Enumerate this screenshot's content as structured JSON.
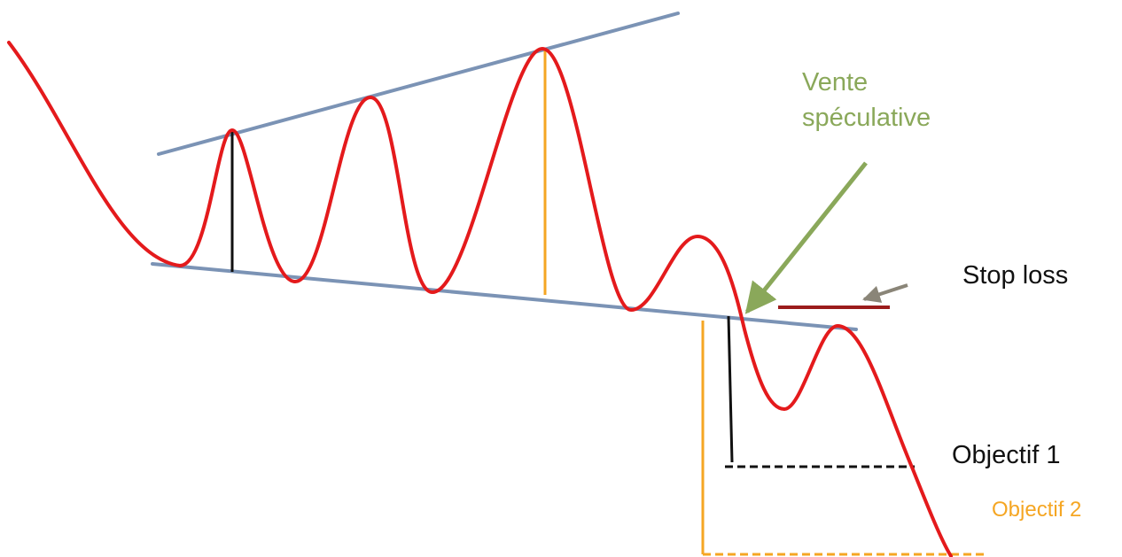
{
  "labels": {
    "vente_line1": "Vente",
    "vente_line2": "spéculative",
    "stop_loss": "Stop loss",
    "objectif_1": "Objectif 1",
    "objectif_2": "Objectif 2"
  },
  "colors": {
    "price_curve": "#e41a1c",
    "trendline": "#7b93b5",
    "spec_sale": "#8aa85a",
    "stop_loss_line": "#9b1c1c",
    "stop_loss_arrow": "#8a8578",
    "objective_1": "#111111",
    "objective_2": "#f5a623",
    "text_default": "#111111"
  }
}
